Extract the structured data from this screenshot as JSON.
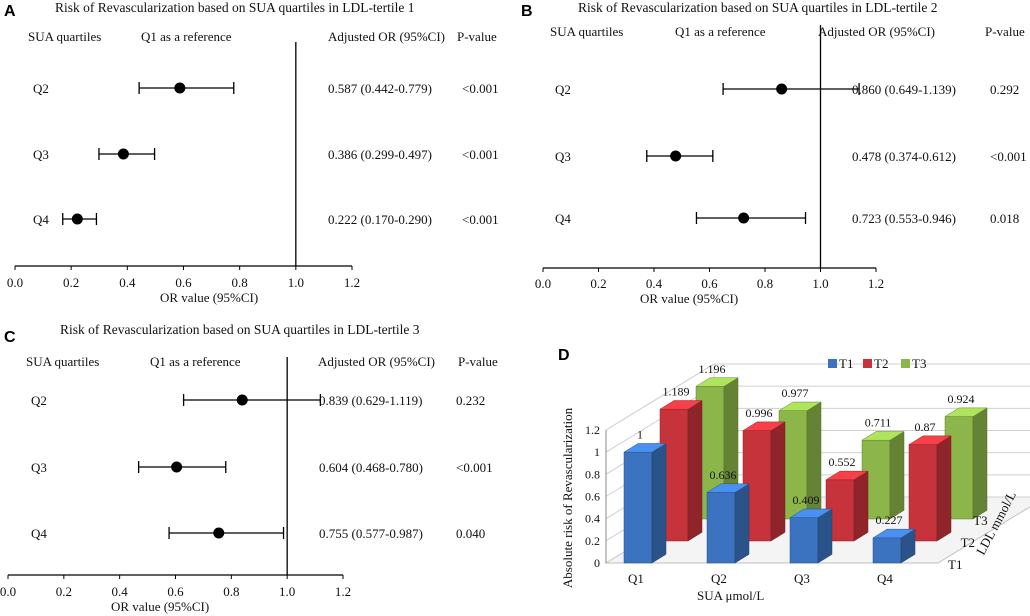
{
  "chart_data": [
    {
      "panel": "A",
      "type": "forest",
      "title": "Risk of Revascularization based on SUA quartiles in LDL-tertile 1",
      "headers": [
        "SUA quartiles",
        "Q1 as a reference",
        "Adjusted OR (95%CI)",
        "P-value"
      ],
      "xlabel": "OR value (95%CI)",
      "xlim": [
        0.0,
        1.2
      ],
      "xticks": [
        "0.0",
        "0.2",
        "0.4",
        "0.6",
        "0.8",
        "1.0",
        "1.2"
      ],
      "reference_line": 1.0,
      "rows": [
        {
          "label": "Q2",
          "or": 0.587,
          "lo": 0.442,
          "hi": 0.779,
          "ci_text": "0.587 (0.442-0.779)",
          "p": "<0.001"
        },
        {
          "label": "Q3",
          "or": 0.386,
          "lo": 0.299,
          "hi": 0.497,
          "ci_text": "0.386 (0.299-0.497)",
          "p": "<0.001"
        },
        {
          "label": "Q4",
          "or": 0.222,
          "lo": 0.17,
          "hi": 0.29,
          "ci_text": "0.222 (0.170-0.290)",
          "p": "<0.001"
        }
      ]
    },
    {
      "panel": "B",
      "type": "forest",
      "title": "Risk of Revascularization based on SUA quartiles in LDL-tertile 2",
      "headers": [
        "SUA quartiles",
        "Q1 as a reference",
        "Adjusted OR (95%CI)",
        "P-value"
      ],
      "xlabel": "OR value (95%CI)",
      "xlim": [
        0.0,
        1.2
      ],
      "xticks": [
        "0.0",
        "0.2",
        "0.4",
        "0.6",
        "0.8",
        "1.0",
        "1.2"
      ],
      "reference_line": 1.0,
      "rows": [
        {
          "label": "Q2",
          "or": 0.86,
          "lo": 0.649,
          "hi": 1.139,
          "ci_text": "0.860 (0.649-1.139)",
          "p": "0.292"
        },
        {
          "label": "Q3",
          "or": 0.478,
          "lo": 0.374,
          "hi": 0.612,
          "ci_text": "0.478 (0.374-0.612)",
          "p": "<0.001"
        },
        {
          "label": "Q4",
          "or": 0.723,
          "lo": 0.553,
          "hi": 0.946,
          "ci_text": "0.723 (0.553-0.946)",
          "p": "0.018"
        }
      ]
    },
    {
      "panel": "C",
      "type": "forest",
      "title": "Risk of Revascularization based on SUA quartiles in LDL-tertile 3",
      "headers": [
        "SUA quartiles",
        "Q1 as a reference",
        "Adjusted OR (95%CI)",
        "P-value"
      ],
      "xlabel": "OR value (95%CI)",
      "xlim": [
        0.0,
        1.2
      ],
      "xticks": [
        "0.0",
        "0.2",
        "0.4",
        "0.6",
        "0.8",
        "1.0",
        "1.2"
      ],
      "reference_line": 1.0,
      "rows": [
        {
          "label": "Q2",
          "or": 0.839,
          "lo": 0.629,
          "hi": 1.119,
          "ci_text": "0.839 (0.629-1.119)",
          "p": "0.232"
        },
        {
          "label": "Q3",
          "or": 0.604,
          "lo": 0.468,
          "hi": 0.78,
          "ci_text": "0.604 (0.468-0.780)",
          "p": "<0.001"
        },
        {
          "label": "Q4",
          "or": 0.755,
          "lo": 0.577,
          "hi": 0.987,
          "ci_text": "0.755 (0.577-0.987)",
          "p": "0.040"
        }
      ]
    },
    {
      "panel": "D",
      "type": "bar",
      "subtype": "3d-grouped",
      "categories": [
        "Q1",
        "Q2",
        "Q3",
        "Q4"
      ],
      "series": [
        {
          "name": "T1",
          "color": "#3b73c0",
          "values": [
            1,
            0.636,
            0.409,
            0.227
          ],
          "labels": [
            "1",
            "0.636",
            "0.409",
            "0.227"
          ]
        },
        {
          "name": "T2",
          "color": "#c6333a",
          "values": [
            1.189,
            0.996,
            0.552,
            0.87
          ],
          "labels": [
            "1.189",
            "0.996",
            "0.552",
            "0.87"
          ]
        },
        {
          "name": "T3",
          "color": "#8cb64a",
          "values": [
            1.196,
            0.977,
            0.711,
            0.924
          ],
          "labels": [
            "1.196",
            "0.977",
            "0.711",
            "0.924"
          ]
        }
      ],
      "xlabel": "SUA μmol/L",
      "ylabel": "Absolute risk of  Revascularization",
      "zlabel": "LDL mmol/L",
      "ylim": [
        0,
        1.2
      ],
      "yticks": [
        "0",
        "0.2",
        "0.4",
        "0.6",
        "0.8",
        "1",
        "1.2"
      ],
      "legend": "top"
    }
  ]
}
